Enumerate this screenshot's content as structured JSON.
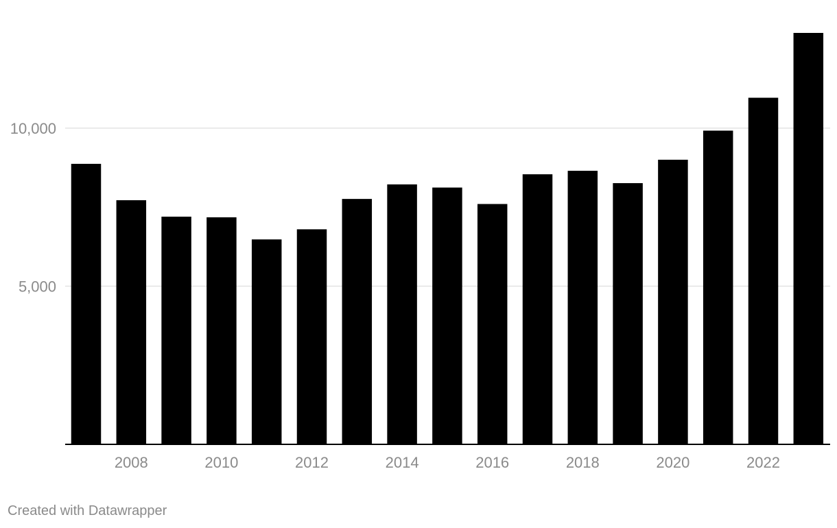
{
  "chart_data": {
    "type": "bar",
    "title": "",
    "xlabel": "",
    "ylabel": "",
    "categories": [
      "2007",
      "2008",
      "2009",
      "2010",
      "2011",
      "2012",
      "2013",
      "2014",
      "2015",
      "2016",
      "2017",
      "2018",
      "2019",
      "2020",
      "2021",
      "2022",
      "2023"
    ],
    "x_tick_labels": [
      "2008",
      "2010",
      "2012",
      "2014",
      "2016",
      "2018",
      "2020",
      "2022"
    ],
    "y_ticks": [
      5000,
      10000
    ],
    "y_tick_labels": [
      "5,000",
      "10,000"
    ],
    "values": [
      8870,
      7720,
      7200,
      7180,
      6480,
      6800,
      7760,
      8220,
      8120,
      7600,
      8540,
      8650,
      8260,
      9000,
      9920,
      10960,
      13010
    ],
    "ylim": [
      0,
      13010
    ],
    "grid": true,
    "legend": "none",
    "bar_color": "#000000"
  },
  "footer": {
    "credit": "Created with Datawrapper"
  }
}
